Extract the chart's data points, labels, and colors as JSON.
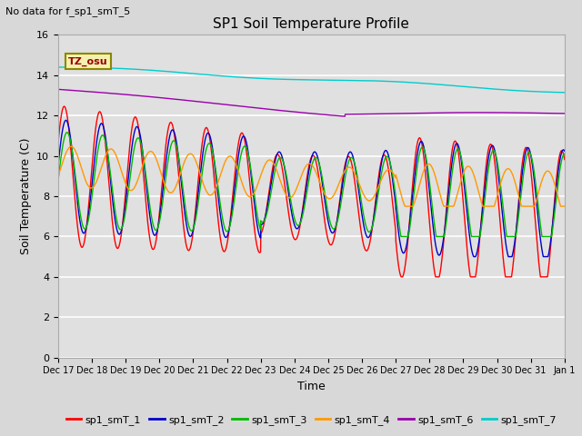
{
  "title": "SP1 Soil Temperature Profile",
  "no_data_text": "No data for f_sp1_smT_5",
  "tz_label": "TZ_osu",
  "xlabel": "Time",
  "ylabel": "Soil Temperature (C)",
  "ylim": [
    0,
    16
  ],
  "yticks": [
    0,
    2,
    4,
    6,
    8,
    10,
    12,
    14,
    16
  ],
  "plot_bg_color": "#e0e0e0",
  "fig_bg_color": "#d8d8d8",
  "series_colors": {
    "sp1_smT_1": "#ff0000",
    "sp1_smT_2": "#0000cc",
    "sp1_smT_3": "#00bb00",
    "sp1_smT_4": "#ff9900",
    "sp1_smT_6": "#9900aa",
    "sp1_smT_7": "#00cccc"
  },
  "xtick_labels": [
    "Dec 17",
    "Dec 18",
    "Dec 19",
    "Dec 20",
    "Dec 21",
    "Dec 22",
    "Dec 23",
    "Dec 24",
    "Dec 25",
    "Dec 26",
    "Dec 27",
    "Dec 28",
    "Dec 29",
    "Dec 30",
    "Dec 31",
    "Jan 1"
  ]
}
